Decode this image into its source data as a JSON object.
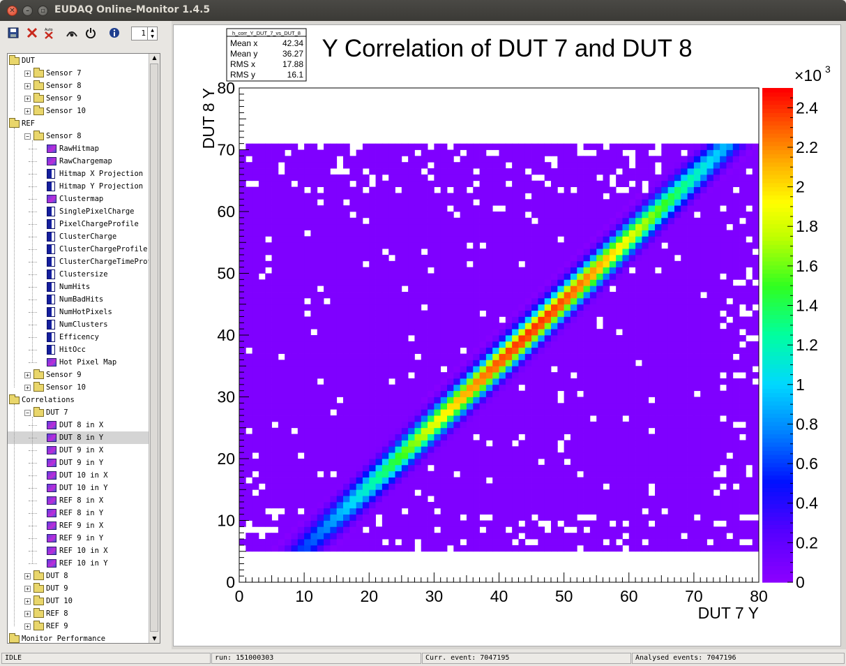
{
  "window": {
    "title": "EUDAQ Online-Monitor 1.4.5"
  },
  "toolbar": {
    "icons": [
      "save-icon",
      "close-icon",
      "auto-reset-icon",
      "snapshot-icon",
      "power-icon",
      "info-icon"
    ],
    "auto_label": "Auto",
    "zoom_value": "1"
  },
  "tree": {
    "rows": [
      {
        "label": "DUT",
        "depth": 0,
        "icon": "folder-open",
        "exp": ""
      },
      {
        "label": "Sensor 7",
        "depth": 1,
        "icon": "folder",
        "exp": "+"
      },
      {
        "label": "Sensor 8",
        "depth": 1,
        "icon": "folder",
        "exp": "+"
      },
      {
        "label": "Sensor 9",
        "depth": 1,
        "icon": "folder",
        "exp": "+"
      },
      {
        "label": "Sensor 10",
        "depth": 1,
        "icon": "folder",
        "exp": "+"
      },
      {
        "label": "REF",
        "depth": 0,
        "icon": "folder-open",
        "exp": ""
      },
      {
        "label": "Sensor 8",
        "depth": 1,
        "icon": "folder-open",
        "exp": "-"
      },
      {
        "label": "RawHitmap",
        "depth": 2,
        "icon": "hist2d",
        "exp": ""
      },
      {
        "label": "RawChargemap",
        "depth": 2,
        "icon": "hist2d",
        "exp": ""
      },
      {
        "label": "Hitmap X Projection",
        "depth": 2,
        "icon": "hist1d",
        "exp": ""
      },
      {
        "label": "Hitmap Y Projection",
        "depth": 2,
        "icon": "hist1d",
        "exp": ""
      },
      {
        "label": "Clustermap",
        "depth": 2,
        "icon": "hist2d",
        "exp": ""
      },
      {
        "label": "SinglePixelCharge",
        "depth": 2,
        "icon": "hist1d",
        "exp": ""
      },
      {
        "label": "PixelChargeProfile",
        "depth": 2,
        "icon": "hist1d",
        "exp": ""
      },
      {
        "label": "ClusterCharge",
        "depth": 2,
        "icon": "hist1d",
        "exp": ""
      },
      {
        "label": "ClusterChargeProfile",
        "depth": 2,
        "icon": "hist1d",
        "exp": ""
      },
      {
        "label": "ClusterChargeTimeProfile",
        "depth": 2,
        "icon": "hist1d",
        "exp": ""
      },
      {
        "label": "Clustersize",
        "depth": 2,
        "icon": "hist1d",
        "exp": ""
      },
      {
        "label": "NumHits",
        "depth": 2,
        "icon": "hist1d",
        "exp": ""
      },
      {
        "label": "NumBadHits",
        "depth": 2,
        "icon": "hist1d",
        "exp": ""
      },
      {
        "label": "NumHotPixels",
        "depth": 2,
        "icon": "hist1d",
        "exp": ""
      },
      {
        "label": "NumClusters",
        "depth": 2,
        "icon": "hist1d",
        "exp": ""
      },
      {
        "label": "Efficency",
        "depth": 2,
        "icon": "hist1d",
        "exp": ""
      },
      {
        "label": "HitOcc",
        "depth": 2,
        "icon": "hist1d",
        "exp": ""
      },
      {
        "label": "Hot Pixel Map",
        "depth": 2,
        "icon": "hist2d",
        "exp": ""
      },
      {
        "label": "Sensor 9",
        "depth": 1,
        "icon": "folder",
        "exp": "+"
      },
      {
        "label": "Sensor 10",
        "depth": 1,
        "icon": "folder",
        "exp": "+"
      },
      {
        "label": "Correlations",
        "depth": 0,
        "icon": "folder-open",
        "exp": ""
      },
      {
        "label": "DUT 7",
        "depth": 1,
        "icon": "folder-open",
        "exp": "-"
      },
      {
        "label": "DUT 8 in X",
        "depth": 2,
        "icon": "hist2d",
        "exp": ""
      },
      {
        "label": "DUT 8 in Y",
        "depth": 2,
        "icon": "hist2d",
        "exp": "",
        "selected": true
      },
      {
        "label": "DUT 9 in X",
        "depth": 2,
        "icon": "hist2d",
        "exp": ""
      },
      {
        "label": "DUT 9 in Y",
        "depth": 2,
        "icon": "hist2d",
        "exp": ""
      },
      {
        "label": "DUT 10 in X",
        "depth": 2,
        "icon": "hist2d",
        "exp": ""
      },
      {
        "label": "DUT 10 in Y",
        "depth": 2,
        "icon": "hist2d",
        "exp": ""
      },
      {
        "label": "REF 8 in X",
        "depth": 2,
        "icon": "hist2d",
        "exp": ""
      },
      {
        "label": "REF 8 in Y",
        "depth": 2,
        "icon": "hist2d",
        "exp": ""
      },
      {
        "label": "REF 9 in X",
        "depth": 2,
        "icon": "hist2d",
        "exp": ""
      },
      {
        "label": "REF 9 in Y",
        "depth": 2,
        "icon": "hist2d",
        "exp": ""
      },
      {
        "label": "REF 10 in X",
        "depth": 2,
        "icon": "hist2d",
        "exp": ""
      },
      {
        "label": "REF 10 in Y",
        "depth": 2,
        "icon": "hist2d",
        "exp": ""
      },
      {
        "label": "DUT 8",
        "depth": 1,
        "icon": "folder",
        "exp": "+"
      },
      {
        "label": "DUT 9",
        "depth": 1,
        "icon": "folder",
        "exp": "+"
      },
      {
        "label": "DUT 10",
        "depth": 1,
        "icon": "folder",
        "exp": "+"
      },
      {
        "label": "REF 8",
        "depth": 1,
        "icon": "folder",
        "exp": "+"
      },
      {
        "label": "REF 9",
        "depth": 1,
        "icon": "folder",
        "exp": "+"
      },
      {
        "label": "Monitor Performance",
        "depth": 0,
        "icon": "folder",
        "exp": ""
      }
    ]
  },
  "status": {
    "state": "IDLE",
    "run": "run: 151000303",
    "curr_event": "Curr. event: 7047195",
    "analysed_events": "Analysed events: 7047196"
  },
  "chart_data": {
    "type": "heatmap",
    "title": "Y Correlation of DUT 7 and DUT 8",
    "xlabel": "DUT 7 Y",
    "ylabel": "DUT 8 Y",
    "xlim": [
      0,
      80
    ],
    "ylim": [
      0,
      80
    ],
    "z_range": [
      0,
      2500
    ],
    "z_exponent_label": "×10",
    "z_exponent_power": "3",
    "x_ticks": [
      "0",
      "10",
      "20",
      "30",
      "40",
      "50",
      "60",
      "70",
      "80"
    ],
    "y_ticks": [
      "0",
      "10",
      "20",
      "30",
      "40",
      "50",
      "60",
      "70",
      "80"
    ],
    "z_ticks": [
      "0",
      "0.2",
      "0.4",
      "0.6",
      "0.8",
      "1",
      "1.2",
      "1.4",
      "1.6",
      "1.8",
      "2",
      "2.2",
      "2.4"
    ],
    "occupied_region": {
      "x": [
        0,
        80
      ],
      "y": [
        5,
        71
      ]
    },
    "correlation": {
      "description_slope": 1.0,
      "offset": -4.4,
      "peak_x": 45,
      "peak_count": 2450,
      "band_sigma": 1.8
    },
    "stats_box": {
      "name": "h_corr_Y_DUT_7_vs_DUT_8",
      "rows": [
        {
          "label": "Mean x",
          "value": "42.34"
        },
        {
          "label": "Mean y",
          "value": "36.27"
        },
        {
          "label": "RMS x",
          "value": "17.88"
        },
        {
          "label": "RMS y",
          "value": "16.1"
        }
      ]
    }
  }
}
